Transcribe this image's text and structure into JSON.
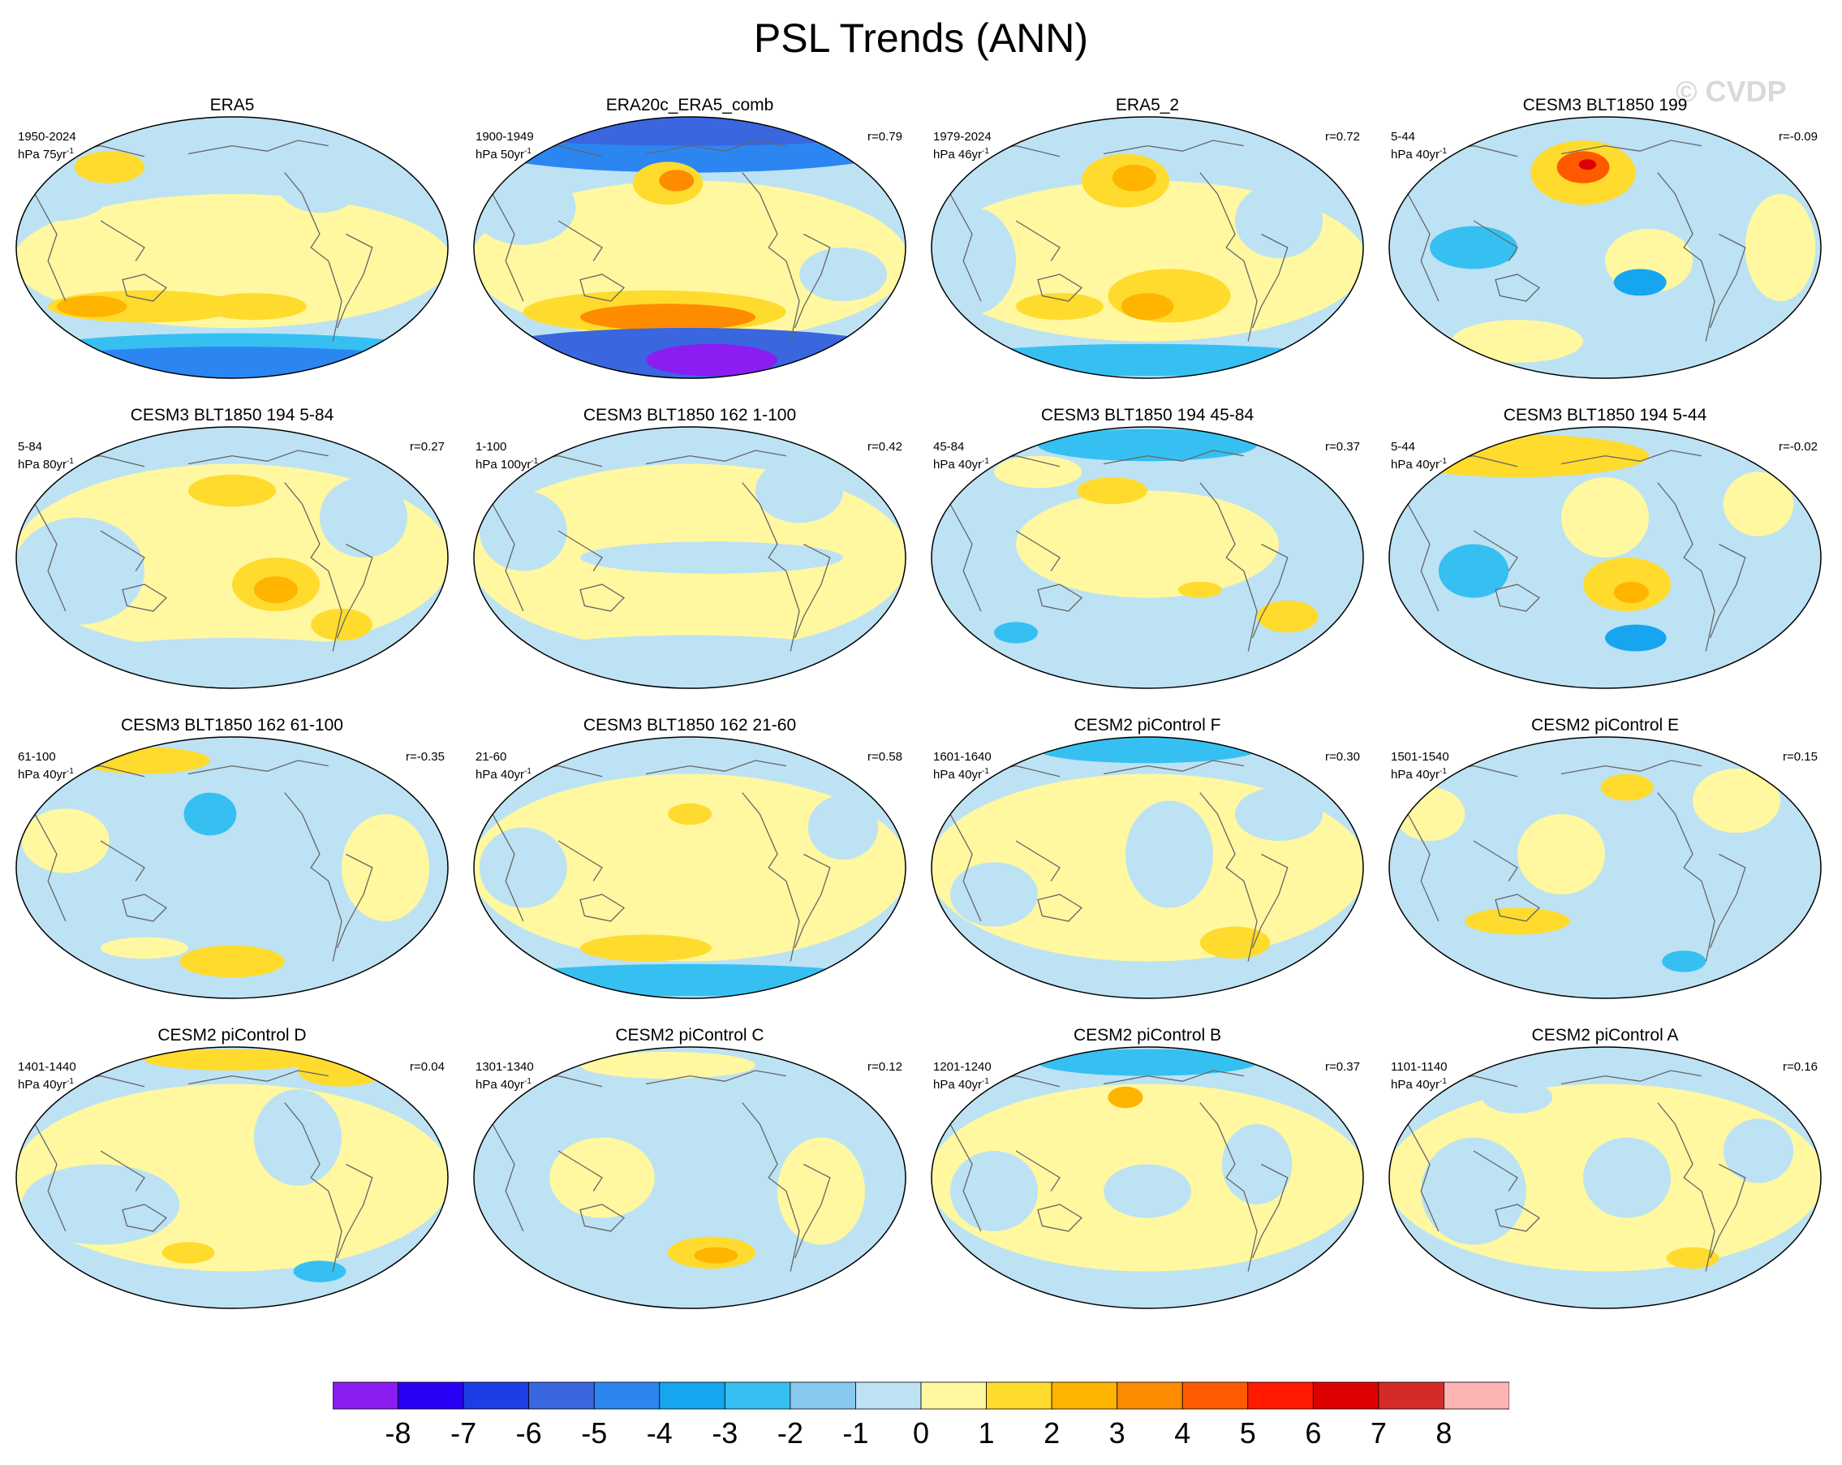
{
  "figure": {
    "title": "PSL Trends (ANN)",
    "watermark": "© CVDP"
  },
  "chart_data": {
    "type": "map",
    "projection": "Robinson-like global",
    "variable": "PSL trend",
    "units": "hPa",
    "panels": [
      {
        "title": "ERA5",
        "range": "1950-2024",
        "unit_prefix": "hPa 75yr",
        "unit_exp": "-1",
        "corr": "",
        "pattern": "era5"
      },
      {
        "title": "ERA20c_ERA5_comb",
        "range": "1900-1949",
        "unit_prefix": "hPa 50yr",
        "unit_exp": "-1",
        "corr": "r=0.79",
        "pattern": "era20c"
      },
      {
        "title": "ERA5_2",
        "range": "1979-2024",
        "unit_prefix": "hPa 46yr",
        "unit_exp": "-1",
        "corr": "r=0.72",
        "pattern": "era5_2"
      },
      {
        "title": "CESM3 BLT1850 199",
        "range": "5-44",
        "unit_prefix": "hPa 40yr",
        "unit_exp": "-1",
        "corr": "r=-0.09",
        "pattern": "blt199"
      },
      {
        "title": "CESM3 BLT1850 194 5-84",
        "range": "5-84",
        "unit_prefix": "hPa 80yr",
        "unit_exp": "-1",
        "corr": "r=0.27",
        "pattern": "b194a"
      },
      {
        "title": "CESM3 BLT1850 162 1-100",
        "range": "1-100",
        "unit_prefix": "hPa 100yr",
        "unit_exp": "-1",
        "corr": "r=0.42",
        "pattern": "b162a"
      },
      {
        "title": "CESM3 BLT1850 194 45-84",
        "range": "45-84",
        "unit_prefix": "hPa 40yr",
        "unit_exp": "-1",
        "corr": "r=0.37",
        "pattern": "b194b"
      },
      {
        "title": "CESM3 BLT1850 194 5-44",
        "range": "5-44",
        "unit_prefix": "hPa 40yr",
        "unit_exp": "-1",
        "corr": "r=-0.02",
        "pattern": "b194c"
      },
      {
        "title": "CESM3 BLT1850 162 61-100",
        "range": "61-100",
        "unit_prefix": "hPa 40yr",
        "unit_exp": "-1",
        "corr": "r=-0.35",
        "pattern": "b162b"
      },
      {
        "title": "CESM3 BLT1850 162 21-60",
        "range": "21-60",
        "unit_prefix": "hPa 40yr",
        "unit_exp": "-1",
        "corr": "r=0.58",
        "pattern": "b162c"
      },
      {
        "title": "CESM2 piControl F",
        "range": "1601-1640",
        "unit_prefix": "hPa 40yr",
        "unit_exp": "-1",
        "corr": "r=0.30",
        "pattern": "picF"
      },
      {
        "title": "CESM2 piControl E",
        "range": "1501-1540",
        "unit_prefix": "hPa 40yr",
        "unit_exp": "-1",
        "corr": "r=0.15",
        "pattern": "picE"
      },
      {
        "title": "CESM2 piControl D",
        "range": "1401-1440",
        "unit_prefix": "hPa 40yr",
        "unit_exp": "-1",
        "corr": "r=0.04",
        "pattern": "picD"
      },
      {
        "title": "CESM2 piControl C",
        "range": "1301-1340",
        "unit_prefix": "hPa 40yr",
        "unit_exp": "-1",
        "corr": "r=0.12",
        "pattern": "picC"
      },
      {
        "title": "CESM2 piControl B",
        "range": "1201-1240",
        "unit_prefix": "hPa 40yr",
        "unit_exp": "-1",
        "corr": "r=0.37",
        "pattern": "picB"
      },
      {
        "title": "CESM2 piControl A",
        "range": "1101-1140",
        "unit_prefix": "hPa 40yr",
        "unit_exp": "-1",
        "corr": "r=0.16",
        "pattern": "picA"
      }
    ],
    "colorbar": {
      "labels": [
        "-8",
        "-7",
        "-6",
        "-5",
        "-4",
        "-3",
        "-2",
        "-1",
        "0",
        "1",
        "2",
        "3",
        "4",
        "5",
        "6",
        "7",
        "8"
      ],
      "colors": [
        "#8b1cf2",
        "#2a00f5",
        "#1f3de6",
        "#3a66e0",
        "#2b86f2",
        "#16a6f0",
        "#36c0f2",
        "#86c8ee",
        "#bde2f4",
        "#fff8a0",
        "#ffdb2e",
        "#ffb400",
        "#ff8c00",
        "#ff5a00",
        "#ff1a00",
        "#dd0000",
        "#d42a2a",
        "#ffb4b4"
      ]
    }
  }
}
